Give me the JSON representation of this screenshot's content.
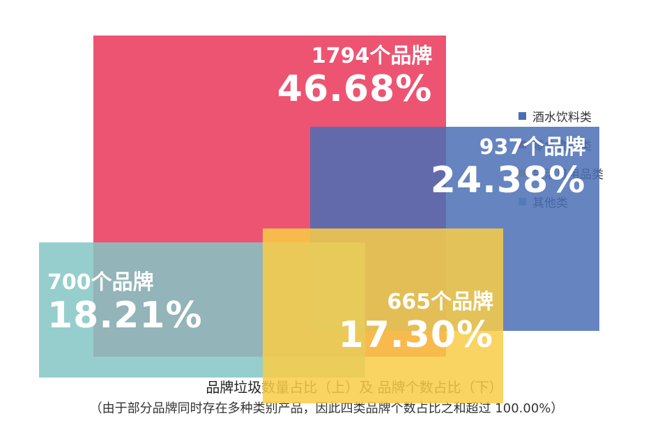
{
  "chart_data": {
    "type": "area",
    "unit": "%",
    "series": [
      {
        "name": "酒水饮料类",
        "count_label": "937个品牌",
        "percent_label": "24.38%",
        "value": 24.38,
        "brands": 937,
        "color": "#4a6eb5"
      },
      {
        "name": "零食食品类",
        "count_label": "1794个品牌",
        "percent_label": "46.68%",
        "value": 46.68,
        "brands": 1794,
        "color": "#ea3c5f"
      },
      {
        "name": "生活日用品类",
        "count_label": "665个品牌",
        "percent_label": "17.30%",
        "value": 17.3,
        "brands": 665,
        "color": "#f9cc46"
      },
      {
        "name": "其他类",
        "count_label": "700个品牌",
        "percent_label": "18.21%",
        "value": 18.21,
        "brands": 700,
        "color": "#82c6c4"
      }
    ],
    "legend_position": "right",
    "caption": "品牌垃圾数量占比（上）及 品牌个数占比（下）",
    "note": "（由于部分品牌同时存在多种类别产品，因此四类品牌个数占比之和超过 100.00%）"
  }
}
